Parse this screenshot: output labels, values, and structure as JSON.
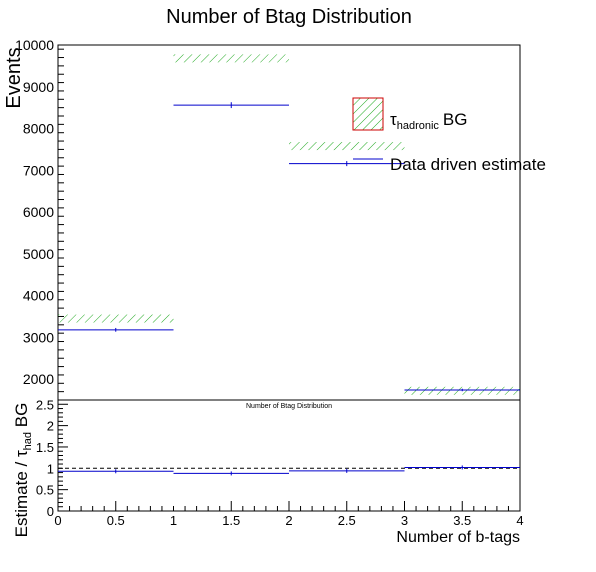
{
  "chart_data": [
    {
      "type": "step-histogram",
      "title": "Number of Btag Distribution",
      "ylabel": "Events",
      "xlim": [
        0,
        4
      ],
      "ylim": [
        1500,
        10000
      ],
      "bins": [
        [
          0,
          1
        ],
        [
          1,
          2
        ],
        [
          2,
          3
        ],
        [
          3,
          4
        ]
      ],
      "y_ticks": [
        2000,
        3000,
        4000,
        5000,
        6000,
        7000,
        8000,
        9000,
        10000
      ],
      "series": [
        {
          "name": "BG",
          "name_main": "τ",
          "name_sub": "hadronic",
          "style": "hatched",
          "color": "#22aa22",
          "values": [
            3450,
            9680,
            7580,
            1720
          ]
        },
        {
          "name": "Data driven estimate",
          "style": "line-with-errors",
          "color": "#0000cc",
          "values": [
            3180,
            8560,
            7160,
            1740
          ],
          "errors": [
            45,
            70,
            60,
            30
          ]
        }
      ],
      "legend": "top-right",
      "legend_frame_color": "#cc0000"
    },
    {
      "type": "ratio",
      "title": "Number of Btag Distribution",
      "xlabel": "Number of b-tags",
      "ylabel_parts": {
        "pre": "Estimate / ",
        "tau": "τ",
        "sub": "had",
        "post": " BG"
      },
      "xlim": [
        0,
        4
      ],
      "ylim": [
        0,
        2.6
      ],
      "x_ticks": [
        0,
        0.5,
        1,
        1.5,
        2,
        2.5,
        3,
        3.5,
        4
      ],
      "x_tick_labels": [
        "0",
        "0.5",
        "1",
        "1.5",
        "2",
        "2.5",
        "3",
        "3.5",
        "4"
      ],
      "y_ticks": [
        0,
        0.5,
        1,
        1.5,
        2,
        2.5
      ],
      "y_tick_labels": [
        "0",
        "0.5",
        "1",
        "1.5",
        "2",
        "2.5"
      ],
      "reference_line": 1,
      "values": [
        0.93,
        0.88,
        0.94,
        1.02
      ],
      "color": "#0000cc"
    }
  ]
}
